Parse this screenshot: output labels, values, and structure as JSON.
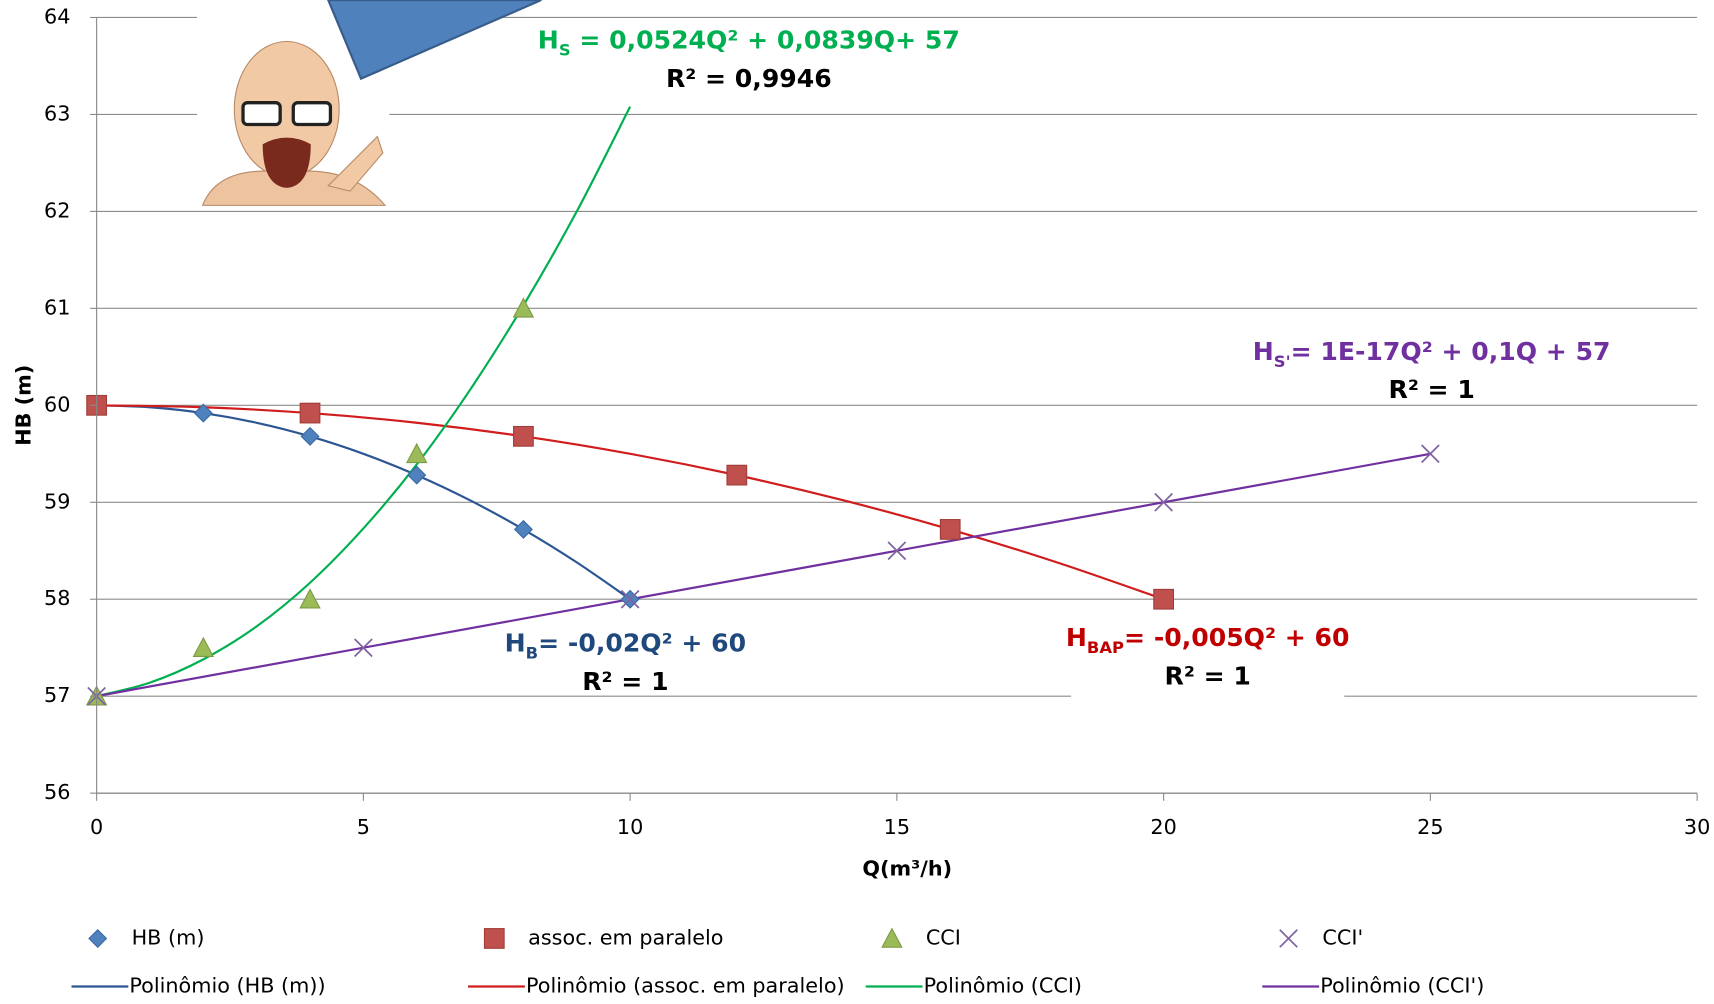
{
  "chart_data": {
    "type": "scatter",
    "xlabel": "Q(m³/h)",
    "ylabel": "HB (m)",
    "xlim": [
      0,
      30
    ],
    "xticks": [
      0,
      5,
      10,
      15,
      20,
      25,
      30
    ],
    "ylim": [
      56,
      64
    ],
    "yticks": [
      56,
      57,
      58,
      59,
      60,
      61,
      62,
      63,
      64
    ],
    "grid": true,
    "series": [
      {
        "name": "HB (m)",
        "mode": "markers",
        "marker": "diamond",
        "color": "#4f81bd",
        "x": [
          0,
          2,
          4,
          6,
          8,
          10
        ],
        "values": [
          60,
          59.92,
          59.68,
          59.28,
          58.72,
          58
        ]
      },
      {
        "name": "assoc. em paralelo",
        "mode": "markers",
        "marker": "square",
        "color": "#c0504d",
        "x": [
          0,
          4,
          8,
          12,
          16,
          20
        ],
        "values": [
          60,
          59.92,
          59.68,
          59.28,
          58.72,
          58
        ]
      },
      {
        "name": "CCI",
        "mode": "markers",
        "marker": "triangle",
        "color": "#9bbb59",
        "x": [
          0,
          2,
          4,
          6,
          8
        ],
        "values": [
          57,
          57.5,
          58,
          59.5,
          61
        ]
      },
      {
        "name": "CCI'",
        "mode": "markers",
        "marker": "x",
        "color": "#8064a2",
        "x": [
          0,
          5,
          10,
          15,
          20,
          25
        ],
        "values": [
          57,
          57.5,
          58,
          58.5,
          59,
          59.5
        ]
      },
      {
        "name": "Polinômio (HB (m))",
        "mode": "line",
        "color": "#2c5693",
        "x": [
          0,
          1,
          2,
          3,
          4,
          5,
          6,
          7,
          8,
          9,
          10
        ],
        "values": [
          60,
          59.98,
          59.92,
          59.82,
          59.68,
          59.5,
          59.28,
          59.02,
          58.72,
          58.38,
          58
        ]
      },
      {
        "name": "Polinômio (assoc. em paralelo)",
        "mode": "line",
        "color": "#d01c1c",
        "x": [
          0,
          2,
          4,
          6,
          8,
          10,
          12,
          14,
          16,
          18,
          20
        ],
        "values": [
          60,
          59.98,
          59.92,
          59.82,
          59.68,
          59.5,
          59.28,
          59.02,
          58.72,
          58.38,
          58
        ]
      },
      {
        "name": "Polinômio (CCI)",
        "mode": "line",
        "color": "#00b050",
        "x": [
          0,
          1,
          2,
          3,
          4,
          5,
          6,
          7,
          8,
          9,
          10
        ],
        "values": [
          57,
          57.14,
          57.38,
          57.72,
          58.17,
          58.73,
          59.39,
          60.16,
          61.03,
          62.0,
          63.08
        ]
      },
      {
        "name": "Polinômio (CCI')",
        "mode": "line",
        "color": "#7030a0",
        "x": [
          0,
          25
        ],
        "values": [
          57,
          59.5
        ]
      }
    ],
    "annotations": [
      {
        "color": "#00b050",
        "base": "H",
        "sub": "S",
        "rest": " = 0,0524Q² + 0,0839Q+ 57",
        "r2": "R² = 0,9946"
      },
      {
        "color": "#7030a0",
        "base": "H",
        "sub": "S'",
        "rest": "= 1E-17Q² + 0,1Q + 57",
        "r2": "R² = 1"
      },
      {
        "color": "#1f497d",
        "base": "H",
        "sub": "B",
        "rest": "= -0,02Q² + 60",
        "r2": "R² = 1"
      },
      {
        "color": "#c00000",
        "base": "H",
        "sub": "BAP",
        "rest": "= -0,005Q² + 60",
        "r2": "R² = 1"
      }
    ]
  }
}
